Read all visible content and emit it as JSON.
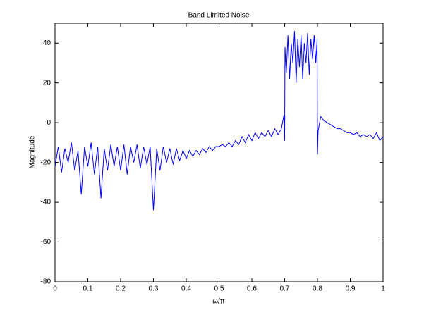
{
  "chart_data": {
    "type": "line",
    "title": "Band Limited Noise",
    "xlabel": "ω/π",
    "ylabel": "Magnitude",
    "x": [
      0,
      0.01,
      0.02,
      0.03,
      0.04,
      0.05,
      0.06,
      0.07,
      0.08,
      0.09,
      0.1,
      0.11,
      0.12,
      0.13,
      0.14,
      0.15,
      0.16,
      0.17,
      0.18,
      0.19,
      0.2,
      0.21,
      0.22,
      0.23,
      0.24,
      0.25,
      0.26,
      0.27,
      0.28,
      0.29,
      0.3,
      0.31,
      0.32,
      0.33,
      0.34,
      0.35,
      0.36,
      0.37,
      0.38,
      0.39,
      0.4,
      0.41,
      0.42,
      0.43,
      0.44,
      0.45,
      0.46,
      0.47,
      0.48,
      0.49,
      0.5,
      0.51,
      0.52,
      0.53,
      0.54,
      0.55,
      0.56,
      0.57,
      0.58,
      0.59,
      0.6,
      0.61,
      0.62,
      0.63,
      0.64,
      0.65,
      0.66,
      0.67,
      0.68,
      0.69,
      0.698,
      0.7,
      0.701,
      0.705,
      0.71,
      0.715,
      0.72,
      0.725,
      0.73,
      0.735,
      0.74,
      0.745,
      0.75,
      0.755,
      0.76,
      0.765,
      0.77,
      0.775,
      0.78,
      0.785,
      0.79,
      0.795,
      0.799,
      0.8,
      0.802,
      0.81,
      0.82,
      0.83,
      0.84,
      0.85,
      0.86,
      0.87,
      0.88,
      0.89,
      0.9,
      0.91,
      0.92,
      0.93,
      0.94,
      0.95,
      0.96,
      0.97,
      0.98,
      0.99,
      1
    ],
    "series": [
      {
        "name": "Magnitude",
        "color": "#0000ff",
        "values": [
          -22,
          -12,
          -25,
          -13,
          -20,
          -10,
          -24,
          -14,
          -36,
          -12,
          -22,
          -10,
          -26,
          -12,
          -38,
          -13,
          -24,
          -11,
          -22,
          -12,
          -24,
          -11,
          -26,
          -12,
          -20,
          -11,
          -23,
          -12,
          -21,
          -12,
          -44,
          -13,
          -24,
          -12,
          -20,
          -13,
          -21,
          -13,
          -19,
          -14,
          -18,
          -14,
          -17,
          -14,
          -16,
          -13,
          -15,
          -12,
          -14,
          -12,
          -12,
          -11,
          -12,
          -10,
          -12,
          -9,
          -11,
          -7,
          -10,
          -6,
          -9,
          -5,
          -8,
          -5,
          -7,
          -4,
          -7,
          -3,
          -6,
          -3,
          4,
          -9,
          38,
          25,
          44,
          22,
          40,
          30,
          46,
          20,
          42,
          28,
          44,
          22,
          40,
          30,
          45,
          24,
          42,
          32,
          44,
          30,
          42,
          -16,
          -4,
          3,
          1,
          0,
          -1,
          -2,
          -3,
          -3,
          -4,
          -5,
          -5,
          -6,
          -5,
          -7,
          -6,
          -7,
          -6,
          -8,
          -5,
          -9,
          -7
        ]
      }
    ],
    "xlim": [
      0,
      1
    ],
    "xticks": [
      0,
      0.1,
      0.2,
      0.3,
      0.4,
      0.5,
      0.6,
      0.7,
      0.8,
      0.9,
      1
    ],
    "ylim": [
      -80,
      50
    ],
    "yticks": [
      -80,
      -60,
      -40,
      -20,
      0,
      20,
      40
    ]
  }
}
